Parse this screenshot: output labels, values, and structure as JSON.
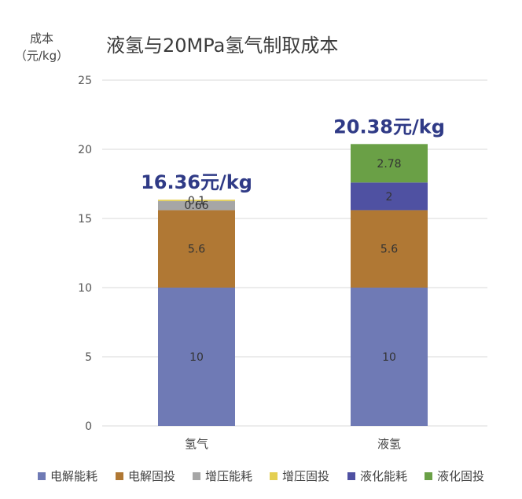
{
  "chart_data": {
    "type": "bar",
    "stacked": true,
    "title": "液氢与20MPa氢气制取成本",
    "ylabel_line1": "成本",
    "ylabel_line2": "（元/kg）",
    "ylim": [
      0,
      25
    ],
    "yticks": [
      "0",
      "5",
      "10",
      "15",
      "20",
      "25"
    ],
    "ytick_values": [
      0,
      5,
      10,
      15,
      20,
      25
    ],
    "grid": true,
    "legend_position": "bottom",
    "categories": [
      "氢气",
      "液氢"
    ],
    "totals": [
      "16.36元/kg",
      "20.38元/kg"
    ],
    "series": [
      {
        "name": "电解能耗",
        "values": [
          10,
          10
        ],
        "labels": [
          "10",
          "10"
        ],
        "color": "#6f7ab5"
      },
      {
        "name": "电解固投",
        "values": [
          5.6,
          5.6
        ],
        "labels": [
          "5.6",
          "5.6"
        ],
        "color": "#b07834"
      },
      {
        "name": "增压能耗",
        "values": [
          0.66,
          0
        ],
        "labels": [
          "0.66",
          ""
        ],
        "color": "#a6a6a6"
      },
      {
        "name": "增压固投",
        "values": [
          0.1,
          0
        ],
        "labels": [
          "0.1",
          ""
        ],
        "color": "#e4cf52"
      },
      {
        "name": "液化能耗",
        "values": [
          0,
          2
        ],
        "labels": [
          "",
          "2"
        ],
        "color": "#4f51a2"
      },
      {
        "name": "液化固投",
        "values": [
          0,
          2.78
        ],
        "labels": [
          "",
          "2.78"
        ],
        "color": "#6aa046"
      }
    ],
    "total_label_color": "#2f3a86"
  }
}
